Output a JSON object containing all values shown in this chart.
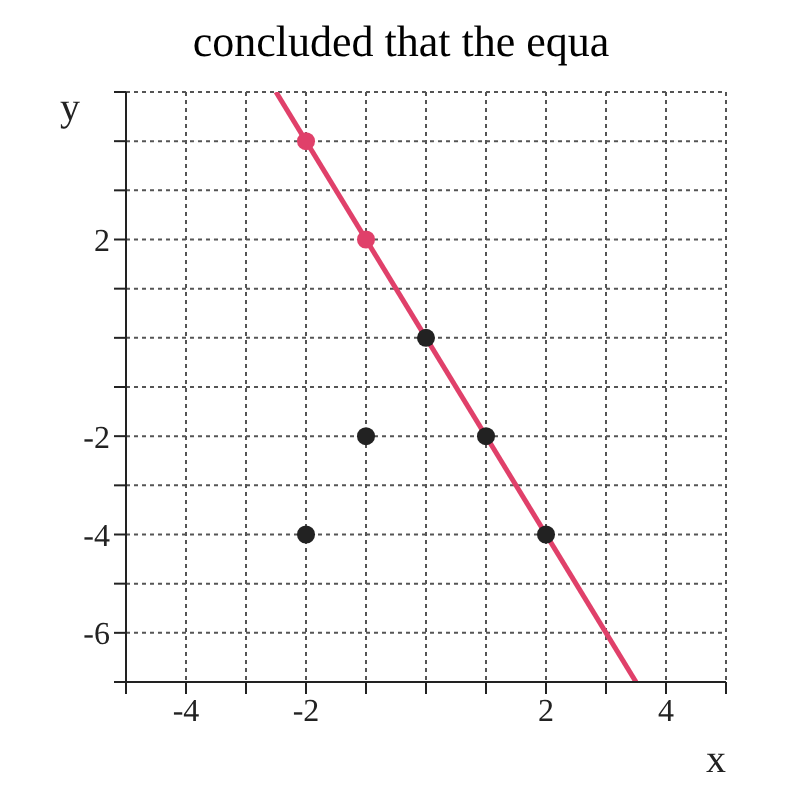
{
  "chart_data": {
    "type": "line",
    "title": "concluded that the equa",
    "xlabel": "x",
    "ylabel": "y",
    "xlim": [
      -5,
      5
    ],
    "ylim": [
      -7,
      5
    ],
    "xticks": [
      {
        "value": -5,
        "label": null
      },
      -4,
      {
        "value": -3,
        "label": null
      },
      -2,
      {
        "value": -1,
        "label": null
      },
      {
        "value": 0,
        "label": null
      },
      {
        "value": 1,
        "label": null
      },
      2,
      {
        "value": 3,
        "label": null
      },
      4,
      {
        "value": 5,
        "label": null
      }
    ],
    "yticks": [
      {
        "value": -7,
        "label": null
      },
      -6,
      {
        "value": -5,
        "label": null
      },
      -4,
      {
        "value": -3,
        "label": null
      },
      -2,
      {
        "value": -1,
        "label": null
      },
      {
        "value": 0,
        "label": null
      },
      {
        "value": 1,
        "label": null
      },
      2,
      {
        "value": 3,
        "label": null
      },
      {
        "value": 4,
        "label": null
      },
      {
        "value": 5,
        "label": null
      }
    ],
    "grid": true,
    "series": [
      {
        "color": "#e0406a",
        "marker": "none",
        "x": [
          -2.5,
          3.5
        ],
        "values": [
          5,
          -7
        ]
      },
      {
        "type": "scatter",
        "color": "#222222",
        "marker": "circle",
        "x": [
          0,
          1,
          2,
          -1,
          -2
        ],
        "values": [
          0,
          -2,
          -4,
          -2,
          -4
        ]
      },
      {
        "type": "scatter",
        "color": "#e0406a",
        "marker": "circle",
        "x": [
          -1,
          -2
        ],
        "values": [
          2,
          4
        ]
      }
    ]
  }
}
